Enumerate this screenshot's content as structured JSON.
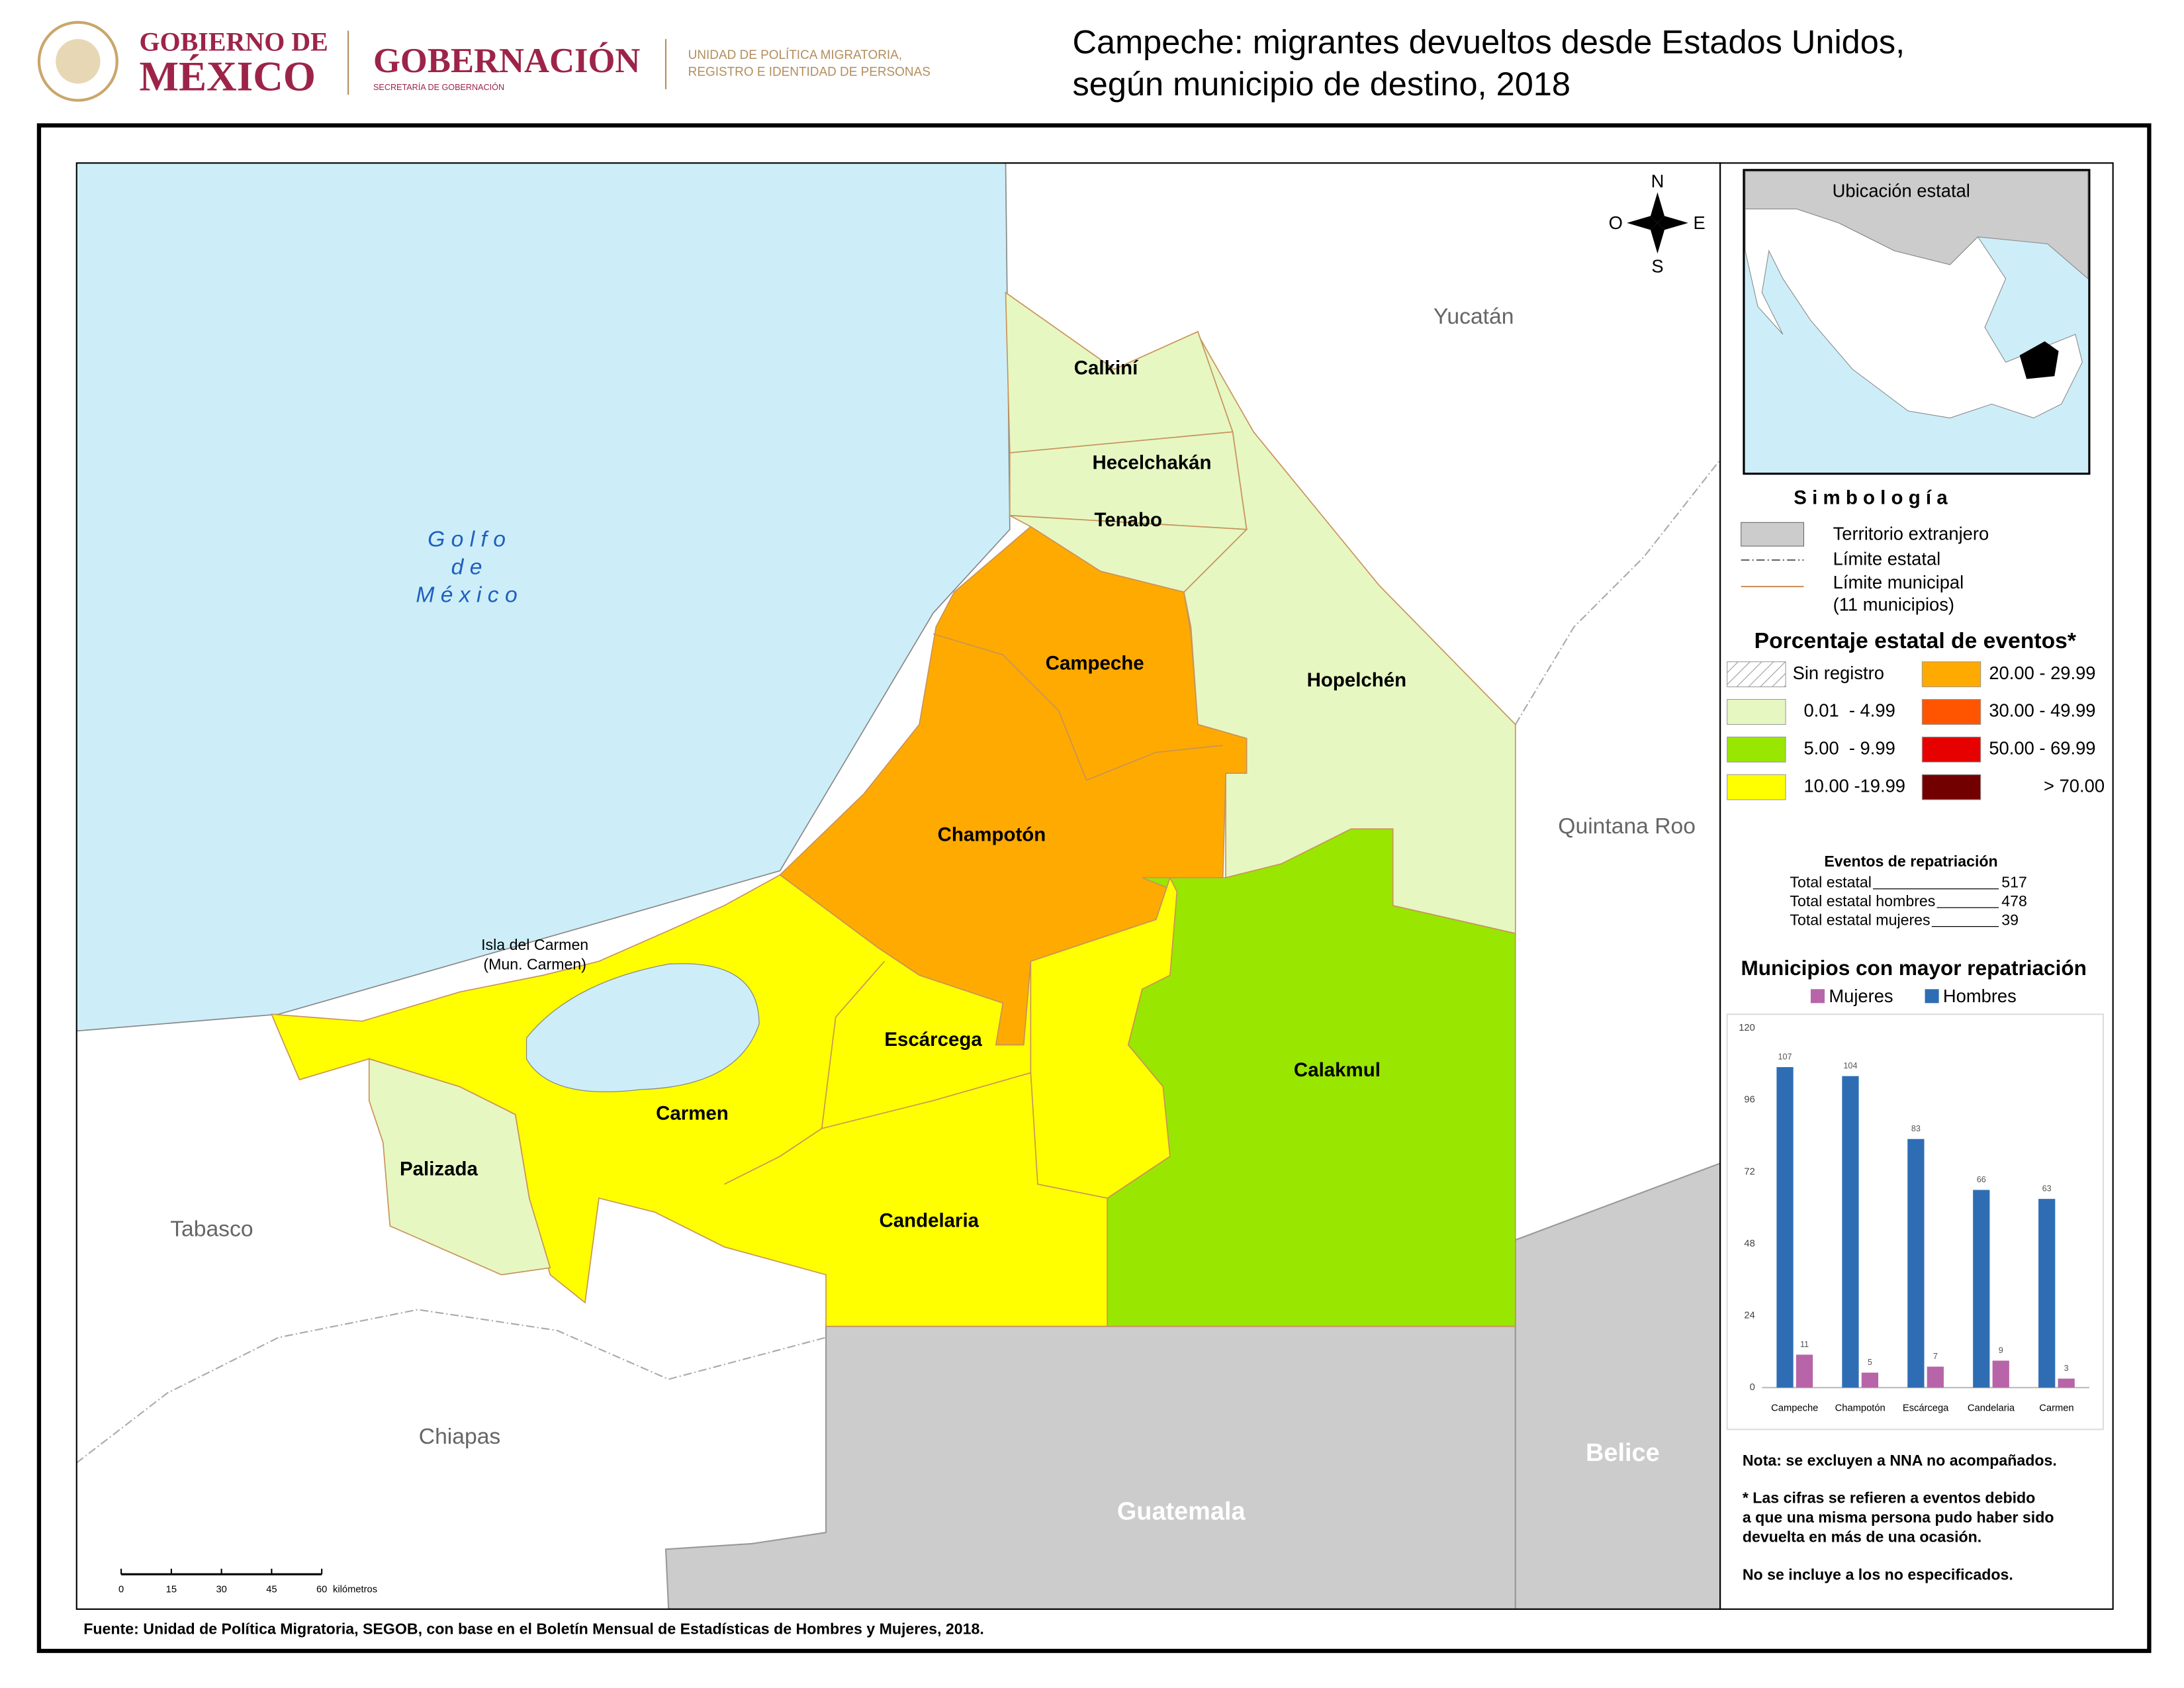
{
  "header": {
    "gov1": "GOBIERNO DE",
    "gov2": "MÉXICO",
    "secretaria": "GOBERNACIÓN",
    "secretaria_sub": "SECRETARÍA DE GOBERNACIÓN",
    "unit1": "UNIDAD DE POLÍTICA MIGRATORIA,",
    "unit2": "REGISTRO E IDENTIDAD DE PERSONAS",
    "title1": "Campeche: migrantes devueltos desde Estados Unidos,",
    "title2": "según municipio de destino, 2018"
  },
  "map": {
    "compass": [
      "N",
      "O",
      "E",
      "S"
    ],
    "gulf": [
      "G o l f o",
      "d e",
      "M é x i c o"
    ],
    "island": [
      "Isla del Carmen",
      "(Mun. Carmen)"
    ],
    "municipalities": [
      {
        "name": "Calkiní",
        "color": "#e6f7c2"
      },
      {
        "name": "Hecelchakán",
        "color": "#e6f7c2"
      },
      {
        "name": "Tenabo",
        "color": "#e6f7c2"
      },
      {
        "name": "Campeche",
        "color": "#ffaa00"
      },
      {
        "name": "Hopelchén",
        "color": "#e6f7c2"
      },
      {
        "name": "Champotón",
        "color": "#ffaa00"
      },
      {
        "name": "Escárcega",
        "color": "#ffff00"
      },
      {
        "name": "Calakmul",
        "color": "#99e600"
      },
      {
        "name": "Carmen",
        "color": "#ffff00"
      },
      {
        "name": "Palizada",
        "color": "#e6f7c2"
      },
      {
        "name": "Candelaria",
        "color": "#ffff00"
      }
    ],
    "neighbors": [
      "Yucatán",
      "Quintana Roo",
      "Tabasco",
      "Chiapas"
    ],
    "foreign": [
      "Belice",
      "Guatemala"
    ],
    "scale": {
      "ticks": [
        0,
        15,
        30,
        45,
        60
      ],
      "unit": "kilómetros"
    }
  },
  "inset": {
    "title": "Ubicación estatal"
  },
  "legend": {
    "title": "S i m b o l o g í a",
    "items": [
      "Territorio extranjero",
      "Límite estatal",
      "Límite municipal",
      "(11 municipios)"
    ],
    "classes_title": "Porcentaje estatal de eventos*",
    "classes": [
      {
        "label": "Sin registro"
      },
      {
        "label": "0.01  - 4.99",
        "color": "#e6f7c2"
      },
      {
        "label": "5.00  - 9.99",
        "color": "#99e600"
      },
      {
        "label": "10.00 -19.99",
        "color": "#ffff00"
      },
      {
        "label": "20.00 - 29.99",
        "color": "#ffaa00"
      },
      {
        "label": "30.00 - 49.99",
        "color": "#ff5500"
      },
      {
        "label": "50.00 - 69.99",
        "color": "#e60000"
      },
      {
        "label": "> 70.00",
        "color": "#730000"
      }
    ]
  },
  "stats": {
    "title": "Eventos de repatriación",
    "rows": [
      {
        "label": "Total estatal",
        "value": 517
      },
      {
        "label": "Total estatal hombres",
        "value": 478
      },
      {
        "label": "Total estatal mujeres",
        "value": 39
      }
    ]
  },
  "chart_data": {
    "type": "bar",
    "title": "Municipios con mayor repatriación",
    "categories": [
      "Campeche",
      "Champotón",
      "Escárcega",
      "Candelaria",
      "Carmen"
    ],
    "series": [
      {
        "name": "Mujeres",
        "color": "#b864a8",
        "values": [
          11,
          5,
          7,
          9,
          3
        ]
      },
      {
        "name": "Hombres",
        "color": "#2e6db4",
        "values": [
          107,
          104,
          83,
          66,
          63
        ]
      }
    ],
    "ylim": [
      0,
      120
    ],
    "yticks": [
      0,
      24,
      48,
      72,
      96,
      120
    ],
    "grid": false
  },
  "notes": [
    "Nota: se excluyen a NNA no acompañados.",
    "* Las cifras se refieren a eventos debido",
    "a que una misma persona pudo haber sido",
    "devuelta en más de una ocasión.",
    "No se incluye a los no especificados."
  ],
  "source": "Fuente: Unidad de Política Migratoria, SEGOB, con base en el Boletín Mensual de Estadísticas de Hombres y Mujeres, 2018."
}
